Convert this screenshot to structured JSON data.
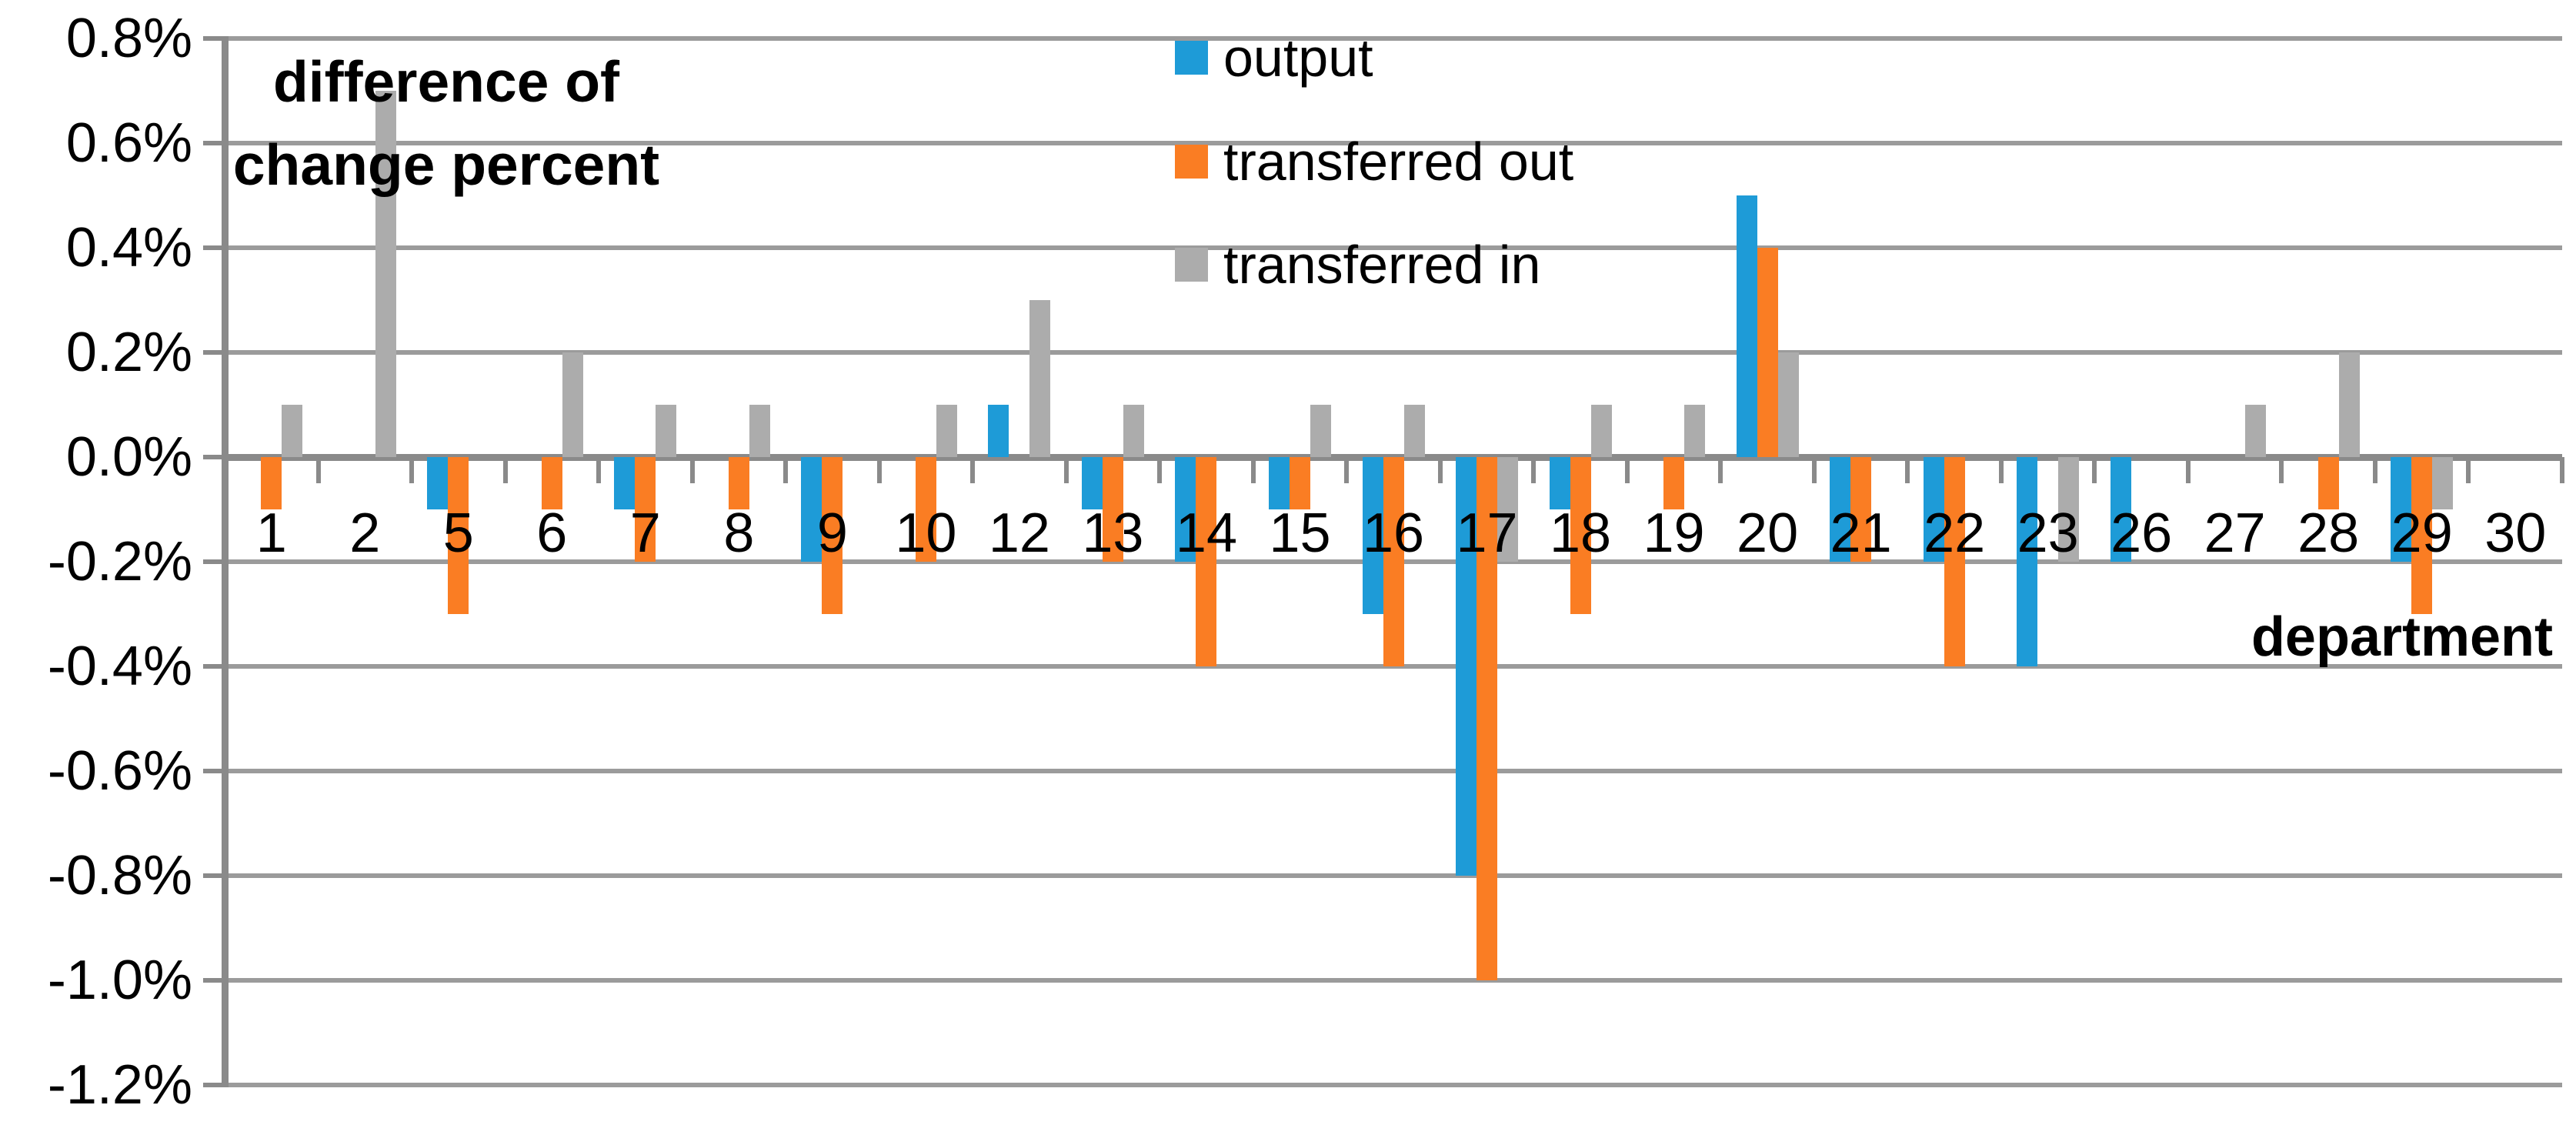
{
  "chart_data": {
    "type": "bar",
    "title_lines": {
      "line1": "difference of",
      "line2": "change percent"
    },
    "xlabel": "department",
    "ylabel": "",
    "categories": [
      "1",
      "2",
      "5",
      "6",
      "7",
      "8",
      "9",
      "10",
      "12",
      "13",
      "14",
      "15",
      "16",
      "17",
      "18",
      "19",
      "20",
      "21",
      "22",
      "23",
      "26",
      "27",
      "28",
      "29",
      "30"
    ],
    "series": [
      {
        "name": "output",
        "color": "#1E9BD7",
        "values": [
          0,
          0,
          -0.1,
          0,
          -0.1,
          0,
          -0.2,
          0,
          0.1,
          -0.1,
          -0.2,
          -0.1,
          -0.3,
          -0.8,
          -0.1,
          0,
          0.5,
          -0.2,
          -0.2,
          -0.4,
          -0.2,
          0,
          0,
          -0.2,
          0
        ]
      },
      {
        "name": "transferred out",
        "color": "#FA7D23",
        "values": [
          -0.1,
          0,
          -0.3,
          -0.1,
          -0.2,
          -0.1,
          -0.3,
          -0.2,
          0,
          -0.2,
          -0.4,
          -0.1,
          -0.4,
          -1.0,
          -0.3,
          -0.1,
          0.4,
          -0.2,
          -0.4,
          0,
          0,
          0,
          -0.1,
          -0.3,
          0
        ]
      },
      {
        "name": "transferred in",
        "color": "#ACACAC",
        "values": [
          0.1,
          0.7,
          0,
          0.2,
          0.1,
          0.1,
          0,
          0.1,
          0.3,
          0.1,
          0,
          0.1,
          0.1,
          -0.2,
          0.1,
          0.1,
          0.2,
          0,
          0,
          -0.2,
          0,
          0.1,
          0.2,
          -0.1,
          0
        ]
      }
    ],
    "y_tick_labels": [
      "0.8%",
      "0.6%",
      "0.4%",
      "0.2%",
      "0.0%",
      "-0.2%",
      "-0.4%",
      "-0.6%",
      "-0.8%",
      "-1.0%",
      "-1.2%"
    ],
    "ylim": [
      -1.2,
      0.8
    ],
    "y_step": 0.2,
    "grid": true,
    "legend_position": "top-center",
    "axis_color": "#8A8A8A",
    "gridline_color": "#9B9B9B"
  }
}
